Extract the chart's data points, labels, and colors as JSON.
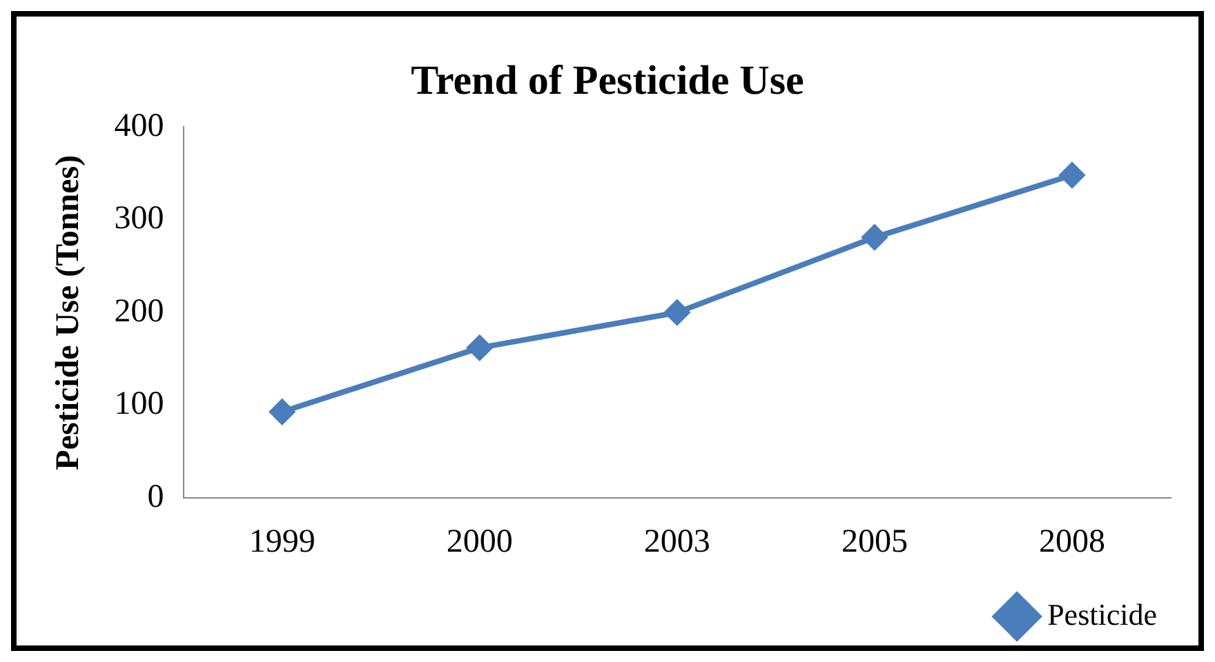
{
  "chart_data": {
    "type": "line",
    "title": "Trend of Pesticide Use",
    "ylabel": "Pesticide Use (Tonnes)",
    "categories": [
      "1999",
      "2000",
      "2003",
      "2005",
      "2008"
    ],
    "series": [
      {
        "name": "Pesticide",
        "color": "#4a7ebb",
        "values": [
          93,
          162,
          200,
          281,
          348
        ]
      }
    ],
    "ylim": [
      0,
      400
    ],
    "yticks": [
      0,
      100,
      200,
      300,
      400
    ],
    "grid": false,
    "legend": "bottom right",
    "marker": "diamond",
    "line_style": "solid"
  }
}
